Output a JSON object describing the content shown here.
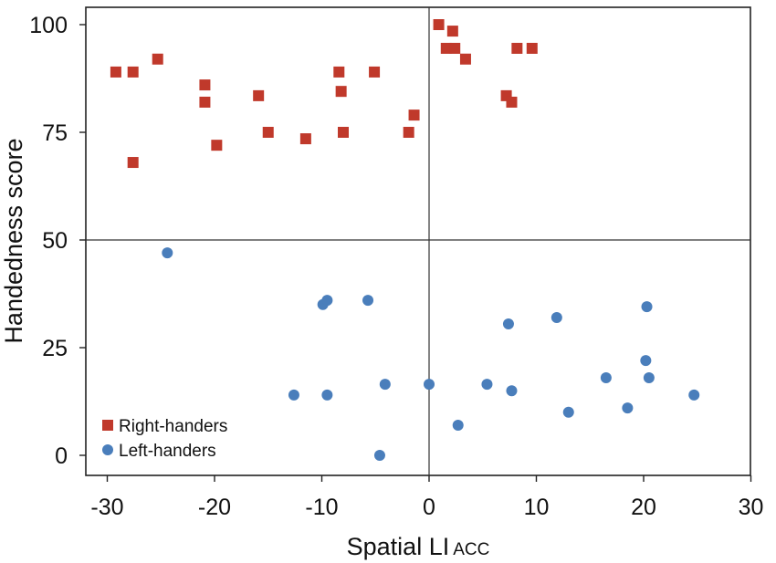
{
  "chart_data": {
    "type": "scatter",
    "xlabel": "Spatial LI",
    "xlabel_subscript": "ACC",
    "ylabel": "Handedness score",
    "xlim": [
      -30,
      30
    ],
    "ylim": [
      0,
      100
    ],
    "x_ticks": [
      -30,
      -20,
      -10,
      0,
      10,
      20,
      30
    ],
    "y_ticks": [
      0,
      25,
      50,
      75,
      100
    ],
    "reference_lines": {
      "x": 0,
      "y": 50
    },
    "grid": false,
    "legend_position": "bottom-left",
    "series": [
      {
        "name": "Right-handers",
        "marker": "square",
        "color": "#c0392b",
        "points": [
          [
            -29.2,
            89
          ],
          [
            -27.6,
            89
          ],
          [
            -27.6,
            68
          ],
          [
            -25.3,
            92
          ],
          [
            -20.9,
            86
          ],
          [
            -20.9,
            82
          ],
          [
            -19.8,
            72
          ],
          [
            -15.9,
            83.5
          ],
          [
            -15.0,
            75
          ],
          [
            -11.5,
            73.5
          ],
          [
            -8.4,
            89
          ],
          [
            -8.2,
            84.5
          ],
          [
            -8.0,
            75
          ],
          [
            -5.1,
            89
          ],
          [
            -1.9,
            75
          ],
          [
            -1.4,
            79
          ],
          [
            0.9,
            100
          ],
          [
            1.6,
            94.5
          ],
          [
            2.2,
            98.5
          ],
          [
            2.4,
            94.5
          ],
          [
            3.4,
            92
          ],
          [
            7.2,
            83.5
          ],
          [
            7.7,
            82
          ],
          [
            8.2,
            94.5
          ],
          [
            9.6,
            94.5
          ]
        ]
      },
      {
        "name": "Left-handers",
        "marker": "circle",
        "color": "#4a7ebb",
        "points": [
          [
            -24.4,
            47
          ],
          [
            -12.6,
            14
          ],
          [
            -9.9,
            35
          ],
          [
            -9.5,
            36
          ],
          [
            -9.5,
            14
          ],
          [
            -5.7,
            36
          ],
          [
            -4.6,
            0
          ],
          [
            -4.1,
            16.5
          ],
          [
            0.0,
            16.5
          ],
          [
            2.7,
            7
          ],
          [
            5.4,
            16.5
          ],
          [
            7.4,
            30.5
          ],
          [
            7.7,
            15
          ],
          [
            11.9,
            32
          ],
          [
            13.0,
            10
          ],
          [
            16.5,
            18
          ],
          [
            18.5,
            11
          ],
          [
            20.2,
            22
          ],
          [
            20.3,
            34.5
          ],
          [
            20.5,
            18
          ],
          [
            24.7,
            14
          ]
        ]
      }
    ]
  }
}
